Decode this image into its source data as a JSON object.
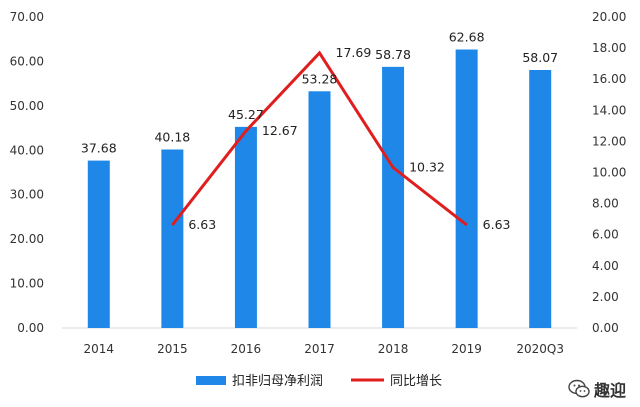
{
  "chart_data": {
    "type": "bar",
    "categories": [
      "2014",
      "2015",
      "2016",
      "2017",
      "2018",
      "2019",
      "2020Q3"
    ],
    "series": [
      {
        "name": "扣非归母净利润",
        "type": "bar",
        "axis": "left",
        "values": [
          37.68,
          40.18,
          45.27,
          53.28,
          58.78,
          62.68,
          58.07
        ],
        "labels": [
          "37.68",
          "40.18",
          "45.27",
          "53.28",
          "58.78",
          "62.68",
          "58.07"
        ],
        "color": "#1f87e8"
      },
      {
        "name": "同比增长",
        "type": "line",
        "axis": "right",
        "values": [
          null,
          6.63,
          12.67,
          17.69,
          10.32,
          6.63,
          null
        ],
        "labels": [
          "",
          "6.63",
          "12.67",
          "17.69",
          "10.32",
          "6.63",
          ""
        ],
        "color": "#e01e1e"
      }
    ],
    "y_left": {
      "range": [
        0,
        70
      ],
      "ticks": [
        "0.00",
        "10.00",
        "20.00",
        "30.00",
        "40.00",
        "50.00",
        "60.00",
        "70.00"
      ]
    },
    "y_right": {
      "range": [
        0,
        20
      ],
      "ticks": [
        "0.00",
        "2.00",
        "4.00",
        "6.00",
        "8.00",
        "10.00",
        "12.00",
        "14.00",
        "16.00",
        "18.00",
        "20.00"
      ]
    },
    "grid": false,
    "legend": "bottom"
  },
  "watermark": {
    "text": "趣迎",
    "icon": "wechat-icon"
  }
}
